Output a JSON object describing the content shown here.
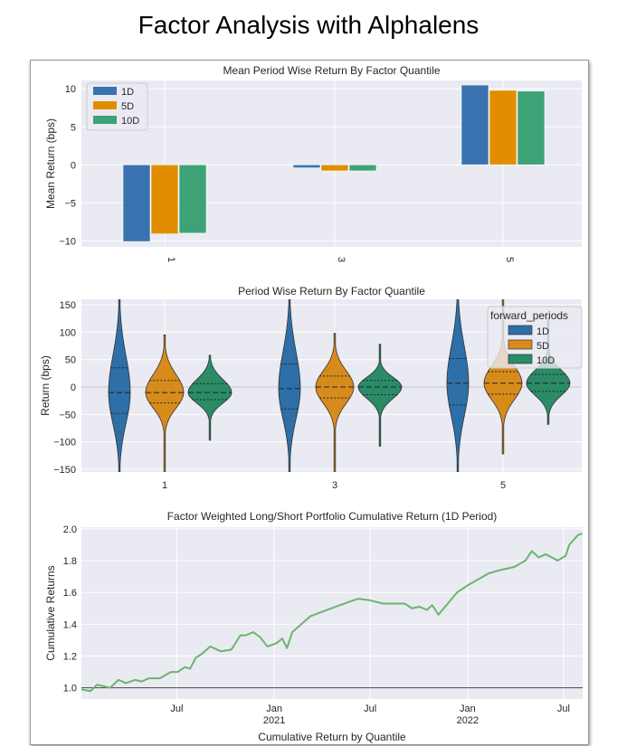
{
  "page_title": "Factor Analysis with Alphalens",
  "chart_data": [
    {
      "type": "bar",
      "title": "Mean Period Wise Return By Factor Quantile",
      "ylabel": "Mean Return (bps)",
      "xlabel": "",
      "categories": [
        "1",
        "3",
        "5"
      ],
      "series": [
        {
          "name": "1D",
          "color": "#3a72b0",
          "values": [
            -10.1,
            -0.4,
            10.5
          ]
        },
        {
          "name": "5D",
          "color": "#e08e00",
          "values": [
            -9.1,
            -0.8,
            9.8
          ]
        },
        {
          "name": "10D",
          "color": "#3da276",
          "values": [
            -9.0,
            -0.8,
            9.7
          ]
        }
      ],
      "ylim": [
        -10.8,
        11.1
      ],
      "yticks": [
        "10",
        "5",
        "0",
        "−5",
        "−10"
      ],
      "ytick_values": [
        10,
        5,
        0,
        -5,
        -10
      ],
      "grid": true,
      "legend": "top-left"
    },
    {
      "type": "violin",
      "title": "Period Wise Return By Factor Quantile",
      "ylabel": "Return (bps)",
      "categories": [
        "1",
        "3",
        "5"
      ],
      "legend_title": "forward_periods",
      "legend": "top-right",
      "series": [
        {
          "name": "1D",
          "color": "#2d6fa6",
          "stats": [
            {
              "median": -10,
              "q1": -48,
              "q3": 35,
              "min": -160,
              "max": 165
            },
            {
              "median": -3,
              "q1": -40,
              "q3": 42,
              "min": -160,
              "max": 165
            },
            {
              "median": 7,
              "q1": -33,
              "q3": 52,
              "min": -160,
              "max": 165
            }
          ]
        },
        {
          "name": "5D",
          "color": "#d68b1b",
          "stats": [
            {
              "median": -10,
              "q1": -29,
              "q3": 12,
              "min": -160,
              "max": 95
            },
            {
              "median": 0,
              "q1": -20,
              "q3": 20,
              "min": -160,
              "max": 98
            },
            {
              "median": 7,
              "q1": -13,
              "q3": 28,
              "min": -122,
              "max": 165
            }
          ]
        },
        {
          "name": "10D",
          "color": "#2b8b67",
          "stats": [
            {
              "median": -10,
              "q1": -23,
              "q3": 6,
              "min": -97,
              "max": 58
            },
            {
              "median": 0,
              "q1": -14,
              "q3": 12,
              "min": -108,
              "max": 78
            },
            {
              "median": 7,
              "q1": -8,
              "q3": 23,
              "min": -68,
              "max": 125
            }
          ]
        }
      ],
      "ylim": [
        -155,
        160
      ],
      "yticks": [
        "150",
        "100",
        "50",
        "0",
        "−50",
        "−100",
        "−150"
      ],
      "ytick_values": [
        150,
        100,
        50,
        0,
        -50,
        -100,
        -150
      ],
      "grid": true
    },
    {
      "type": "line",
      "title": "Factor Weighted Long/Short Portfolio Cumulative Return (1D Period)",
      "ylabel": "Cumulative Returns",
      "ylim": [
        0.93,
        2.01
      ],
      "xlim": [
        "2020-01-03",
        "2022-08-06"
      ],
      "yticks": [
        "2.0",
        "1.8",
        "1.6",
        "1.4",
        "1.2",
        "1.0"
      ],
      "ytick_values": [
        2.0,
        1.8,
        1.6,
        1.4,
        1.2,
        1.0
      ],
      "xticks": [
        {
          "date": "2020-07-01",
          "label": "Jul",
          "year": ""
        },
        {
          "date": "2021-01-01",
          "label": "Jan",
          "year": "2021"
        },
        {
          "date": "2021-07-01",
          "label": "Jul",
          "year": ""
        },
        {
          "date": "2022-01-01",
          "label": "Jan",
          "year": "2022"
        },
        {
          "date": "2022-07-01",
          "label": "Jul",
          "year": ""
        }
      ],
      "baseline": 1.0,
      "grid": true,
      "series": [
        {
          "color": "#6ab56e",
          "points": [
            [
              "2020-01-03",
              0.99
            ],
            [
              "2020-01-20",
              0.98
            ],
            [
              "2020-02-02",
              1.02
            ],
            [
              "2020-02-26",
              1.0
            ],
            [
              "2020-03-13",
              1.05
            ],
            [
              "2020-03-27",
              1.03
            ],
            [
              "2020-04-13",
              1.05
            ],
            [
              "2020-04-26",
              1.04
            ],
            [
              "2020-05-09",
              1.06
            ],
            [
              "2020-05-30",
              1.06
            ],
            [
              "2020-06-20",
              1.1
            ],
            [
              "2020-07-03",
              1.1
            ],
            [
              "2020-07-16",
              1.13
            ],
            [
              "2020-07-26",
              1.12
            ],
            [
              "2020-08-06",
              1.19
            ],
            [
              "2020-08-16",
              1.21
            ],
            [
              "2020-09-02",
              1.26
            ],
            [
              "2020-09-22",
              1.23
            ],
            [
              "2020-10-12",
              1.24
            ],
            [
              "2020-10-29",
              1.33
            ],
            [
              "2020-11-08",
              1.33
            ],
            [
              "2020-11-22",
              1.35
            ],
            [
              "2020-12-05",
              1.32
            ],
            [
              "2020-12-19",
              1.26
            ],
            [
              "2021-01-05",
              1.28
            ],
            [
              "2021-01-16",
              1.31
            ],
            [
              "2021-01-25",
              1.25
            ],
            [
              "2021-02-04",
              1.35
            ],
            [
              "2021-03-10",
              1.45
            ],
            [
              "2021-04-03",
              1.48
            ],
            [
              "2021-05-05",
              1.52
            ],
            [
              "2021-06-08",
              1.56
            ],
            [
              "2021-07-01",
              1.55
            ],
            [
              "2021-07-25",
              1.53
            ],
            [
              "2021-09-04",
              1.53
            ],
            [
              "2021-09-18",
              1.5
            ],
            [
              "2021-10-02",
              1.51
            ],
            [
              "2021-10-16",
              1.49
            ],
            [
              "2021-10-26",
              1.52
            ],
            [
              "2021-11-05",
              1.47
            ],
            [
              "2021-11-07",
              1.46
            ],
            [
              "2021-12-12",
              1.6
            ],
            [
              "2022-01-04",
              1.65
            ],
            [
              "2022-02-10",
              1.72
            ],
            [
              "2022-03-03",
              1.74
            ],
            [
              "2022-03-30",
              1.76
            ],
            [
              "2022-04-20",
              1.8
            ],
            [
              "2022-05-02",
              1.86
            ],
            [
              "2022-05-15",
              1.82
            ],
            [
              "2022-05-28",
              1.84
            ],
            [
              "2022-06-20",
              1.8
            ],
            [
              "2022-07-05",
              1.83
            ],
            [
              "2022-07-12",
              1.9
            ],
            [
              "2022-07-28",
              1.96
            ],
            [
              "2022-08-05",
              1.97
            ]
          ]
        }
      ]
    }
  ],
  "next_chart_title_partial": "Cumulative Return by Quantile"
}
